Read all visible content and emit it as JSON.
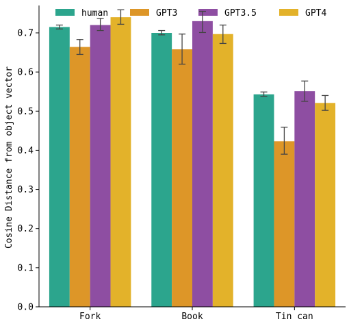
{
  "chart_data": {
    "type": "bar",
    "title": "",
    "xlabel": "",
    "ylabel": "Cosine Distance from object vector",
    "categories": [
      "Fork",
      "Book",
      "Tin can"
    ],
    "ylim": [
      0,
      0.77
    ],
    "yticks": [
      0.0,
      0.1,
      0.2,
      0.3,
      0.4,
      0.5,
      0.6,
      0.7
    ],
    "grid": false,
    "legend_position": "top",
    "series": [
      {
        "name": "human",
        "color": "#2ca58d",
        "values": [
          0.715,
          0.7,
          0.543
        ],
        "err_low": [
          0.71,
          0.695,
          0.538
        ],
        "err_high": [
          0.72,
          0.706,
          0.549
        ]
      },
      {
        "name": "GPT3",
        "color": "#dd9628",
        "values": [
          0.664,
          0.658,
          0.423
        ],
        "err_low": [
          0.645,
          0.62,
          0.39
        ],
        "err_high": [
          0.683,
          0.697,
          0.459
        ]
      },
      {
        "name": "GPT3.5",
        "color": "#8e4ea2",
        "values": [
          0.72,
          0.73,
          0.551
        ],
        "err_low": [
          0.706,
          0.701,
          0.525
        ],
        "err_high": [
          0.737,
          0.755,
          0.577
        ]
      },
      {
        "name": "GPT4",
        "color": "#e3b22a",
        "values": [
          0.74,
          0.697,
          0.521
        ],
        "err_low": [
          0.722,
          0.673,
          0.502
        ],
        "err_high": [
          0.759,
          0.72,
          0.54
        ]
      }
    ]
  }
}
